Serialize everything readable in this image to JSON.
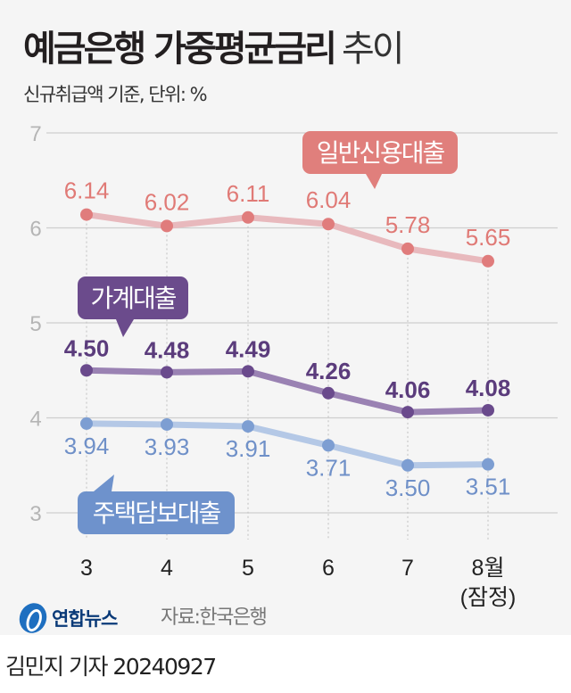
{
  "title": {
    "main": "예금은행 가중평균금리",
    "suffix": "추이"
  },
  "subtitle": "신규취급액 기준, 단위: %",
  "source": "자료:한국은행",
  "logo_text": "연합뉴스",
  "byline": "김민지 기자  20240927",
  "chart_data": {
    "type": "line",
    "categories": [
      "3",
      "4",
      "5",
      "6",
      "7",
      "8월\n(잠정)"
    ],
    "ylim": [
      3,
      7
    ],
    "yticks": [
      3,
      4,
      5,
      6,
      7
    ],
    "grid": true,
    "series": [
      {
        "name": "일반신용대출",
        "values": [
          6.14,
          6.02,
          6.11,
          6.04,
          5.78,
          5.65
        ],
        "line_color": "#e8b9bd",
        "dot_color": "#e07c7c",
        "label_color": "#e07a76",
        "box_color": "#e07f7c",
        "label_bold": false
      },
      {
        "name": "가계대출",
        "values": [
          4.5,
          4.48,
          4.49,
          4.26,
          4.06,
          4.08
        ],
        "line_color": "#9a82b3",
        "dot_color": "#6a4a8c",
        "label_color": "#5b3c7c",
        "box_color": "#6b4b8c",
        "label_bold": true
      },
      {
        "name": "주택담보대출",
        "values": [
          3.94,
          3.93,
          3.91,
          3.71,
          3.5,
          3.51
        ],
        "line_color": "#b4c8e6",
        "dot_color": "#7d9ed2",
        "label_color": "#6f90c8",
        "box_color": "#6e92cc",
        "label_bold": false
      }
    ]
  }
}
